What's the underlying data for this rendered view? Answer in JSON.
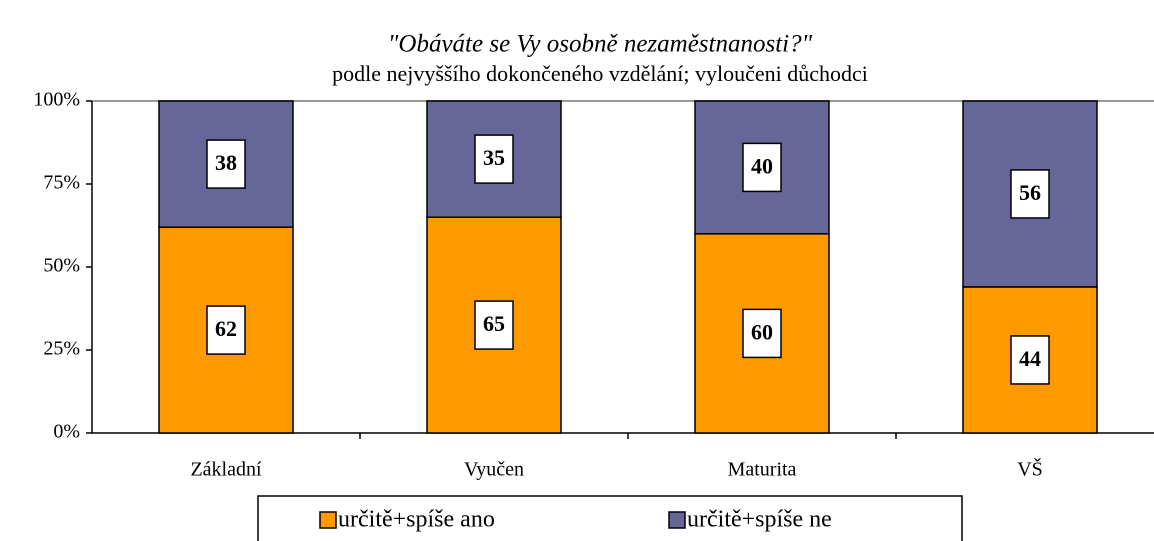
{
  "chart_data": {
    "type": "stacked_bar",
    "title": "\"Obáváte se Vy osobně nezaměstnanosti?\"",
    "subtitle": "podle nejvyššího dokončeného vzdělání; vyloučeni důchodci",
    "categories": [
      "Základní",
      "Vyučen",
      "Maturita",
      "VŠ"
    ],
    "series": [
      {
        "name": "určitě+spíše ano",
        "color": "#ff9900",
        "values": [
          62,
          65,
          60,
          44
        ]
      },
      {
        "name": "určitě+spíše ne",
        "color": "#666699",
        "values": [
          38,
          35,
          40,
          56
        ]
      }
    ],
    "ylim": [
      0,
      100
    ],
    "yticks": [
      {
        "value": 0,
        "label": "0%"
      },
      {
        "value": 25,
        "label": "25%"
      },
      {
        "value": 50,
        "label": "50%"
      },
      {
        "value": 75,
        "label": "75%"
      },
      {
        "value": 100,
        "label": "100%"
      }
    ]
  }
}
